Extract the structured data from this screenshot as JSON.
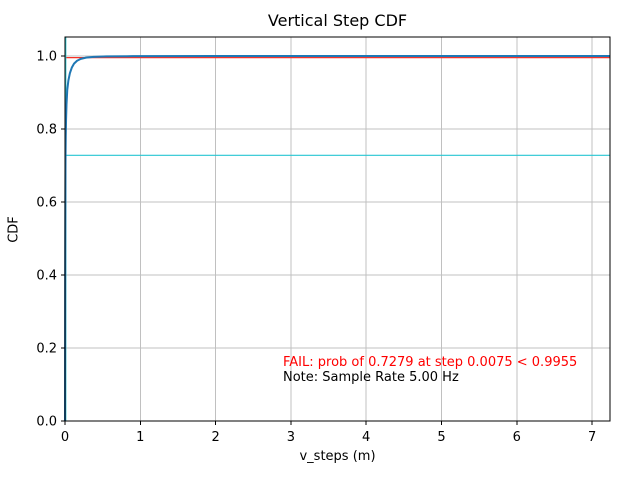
{
  "chart_data": {
    "type": "line",
    "title": "Vertical Step CDF",
    "xlabel": "v_steps (m)",
    "ylabel": "CDF",
    "xlim": [
      0,
      7.238
    ],
    "ylim": [
      0,
      1.052
    ],
    "grid": true,
    "legend": "none",
    "xticks": [
      0,
      1,
      2,
      3,
      4,
      5,
      6,
      7
    ],
    "xtick_labels": [
      "0",
      "1",
      "2",
      "3",
      "4",
      "5",
      "6",
      "7"
    ],
    "yticks": [
      0.0,
      0.2,
      0.4,
      0.6,
      0.8,
      1.0
    ],
    "ytick_labels": [
      "0.0",
      "0.2",
      "0.4",
      "0.6",
      "0.8",
      "1.0"
    ],
    "colors": {
      "grid": "#c0c0c0",
      "axes": "#000000",
      "cdf_curve": "#1f77b4",
      "threshold_line": "#f53126",
      "marker_lines": "#27c6d2"
    },
    "series": [
      {
        "name": "threshold-line",
        "label": "pass threshold 0.9955",
        "color": "#f53126",
        "width": 1.2,
        "points": [
          [
            0,
            0.9955
          ],
          [
            7.238,
            0.9955
          ]
        ]
      },
      {
        "name": "prob-hline",
        "label": "probability 0.7279",
        "color": "#27c6d2",
        "width": 1.2,
        "points": [
          [
            0,
            0.7279
          ],
          [
            7.238,
            0.7279
          ]
        ]
      },
      {
        "name": "step-vline",
        "label": "step 0.0075",
        "color": "#27c6d2",
        "width": 1.6,
        "points": [
          [
            0.0075,
            0
          ],
          [
            0.0075,
            1.052
          ]
        ]
      },
      {
        "name": "cdf-curve",
        "label": "Vertical step CDF",
        "color": "#1f77b4",
        "width": 2,
        "points": [
          [
            0,
            0
          ],
          [
            0.001,
            0.2
          ],
          [
            0.002,
            0.36
          ],
          [
            0.003,
            0.47
          ],
          [
            0.0045,
            0.58
          ],
          [
            0.006,
            0.66
          ],
          [
            0.0075,
            0.7279
          ],
          [
            0.01,
            0.78
          ],
          [
            0.014,
            0.825
          ],
          [
            0.02,
            0.868
          ],
          [
            0.03,
            0.907
          ],
          [
            0.045,
            0.933
          ],
          [
            0.065,
            0.953
          ],
          [
            0.09,
            0.968
          ],
          [
            0.12,
            0.979
          ],
          [
            0.16,
            0.987
          ],
          [
            0.21,
            0.992
          ],
          [
            0.28,
            0.9955
          ],
          [
            0.38,
            0.9975
          ],
          [
            0.55,
            0.999
          ],
          [
            0.9,
            0.9995
          ],
          [
            2,
            0.9999
          ],
          [
            7.238,
            1.0
          ]
        ]
      }
    ],
    "annotations": [
      {
        "text": "FAIL: prob of 0.7279 at step 0.0075 < 0.9955",
        "color": "#ff0000"
      },
      {
        "text": "Note: Sample Rate 5.00 Hz",
        "color": "#000000"
      }
    ]
  }
}
